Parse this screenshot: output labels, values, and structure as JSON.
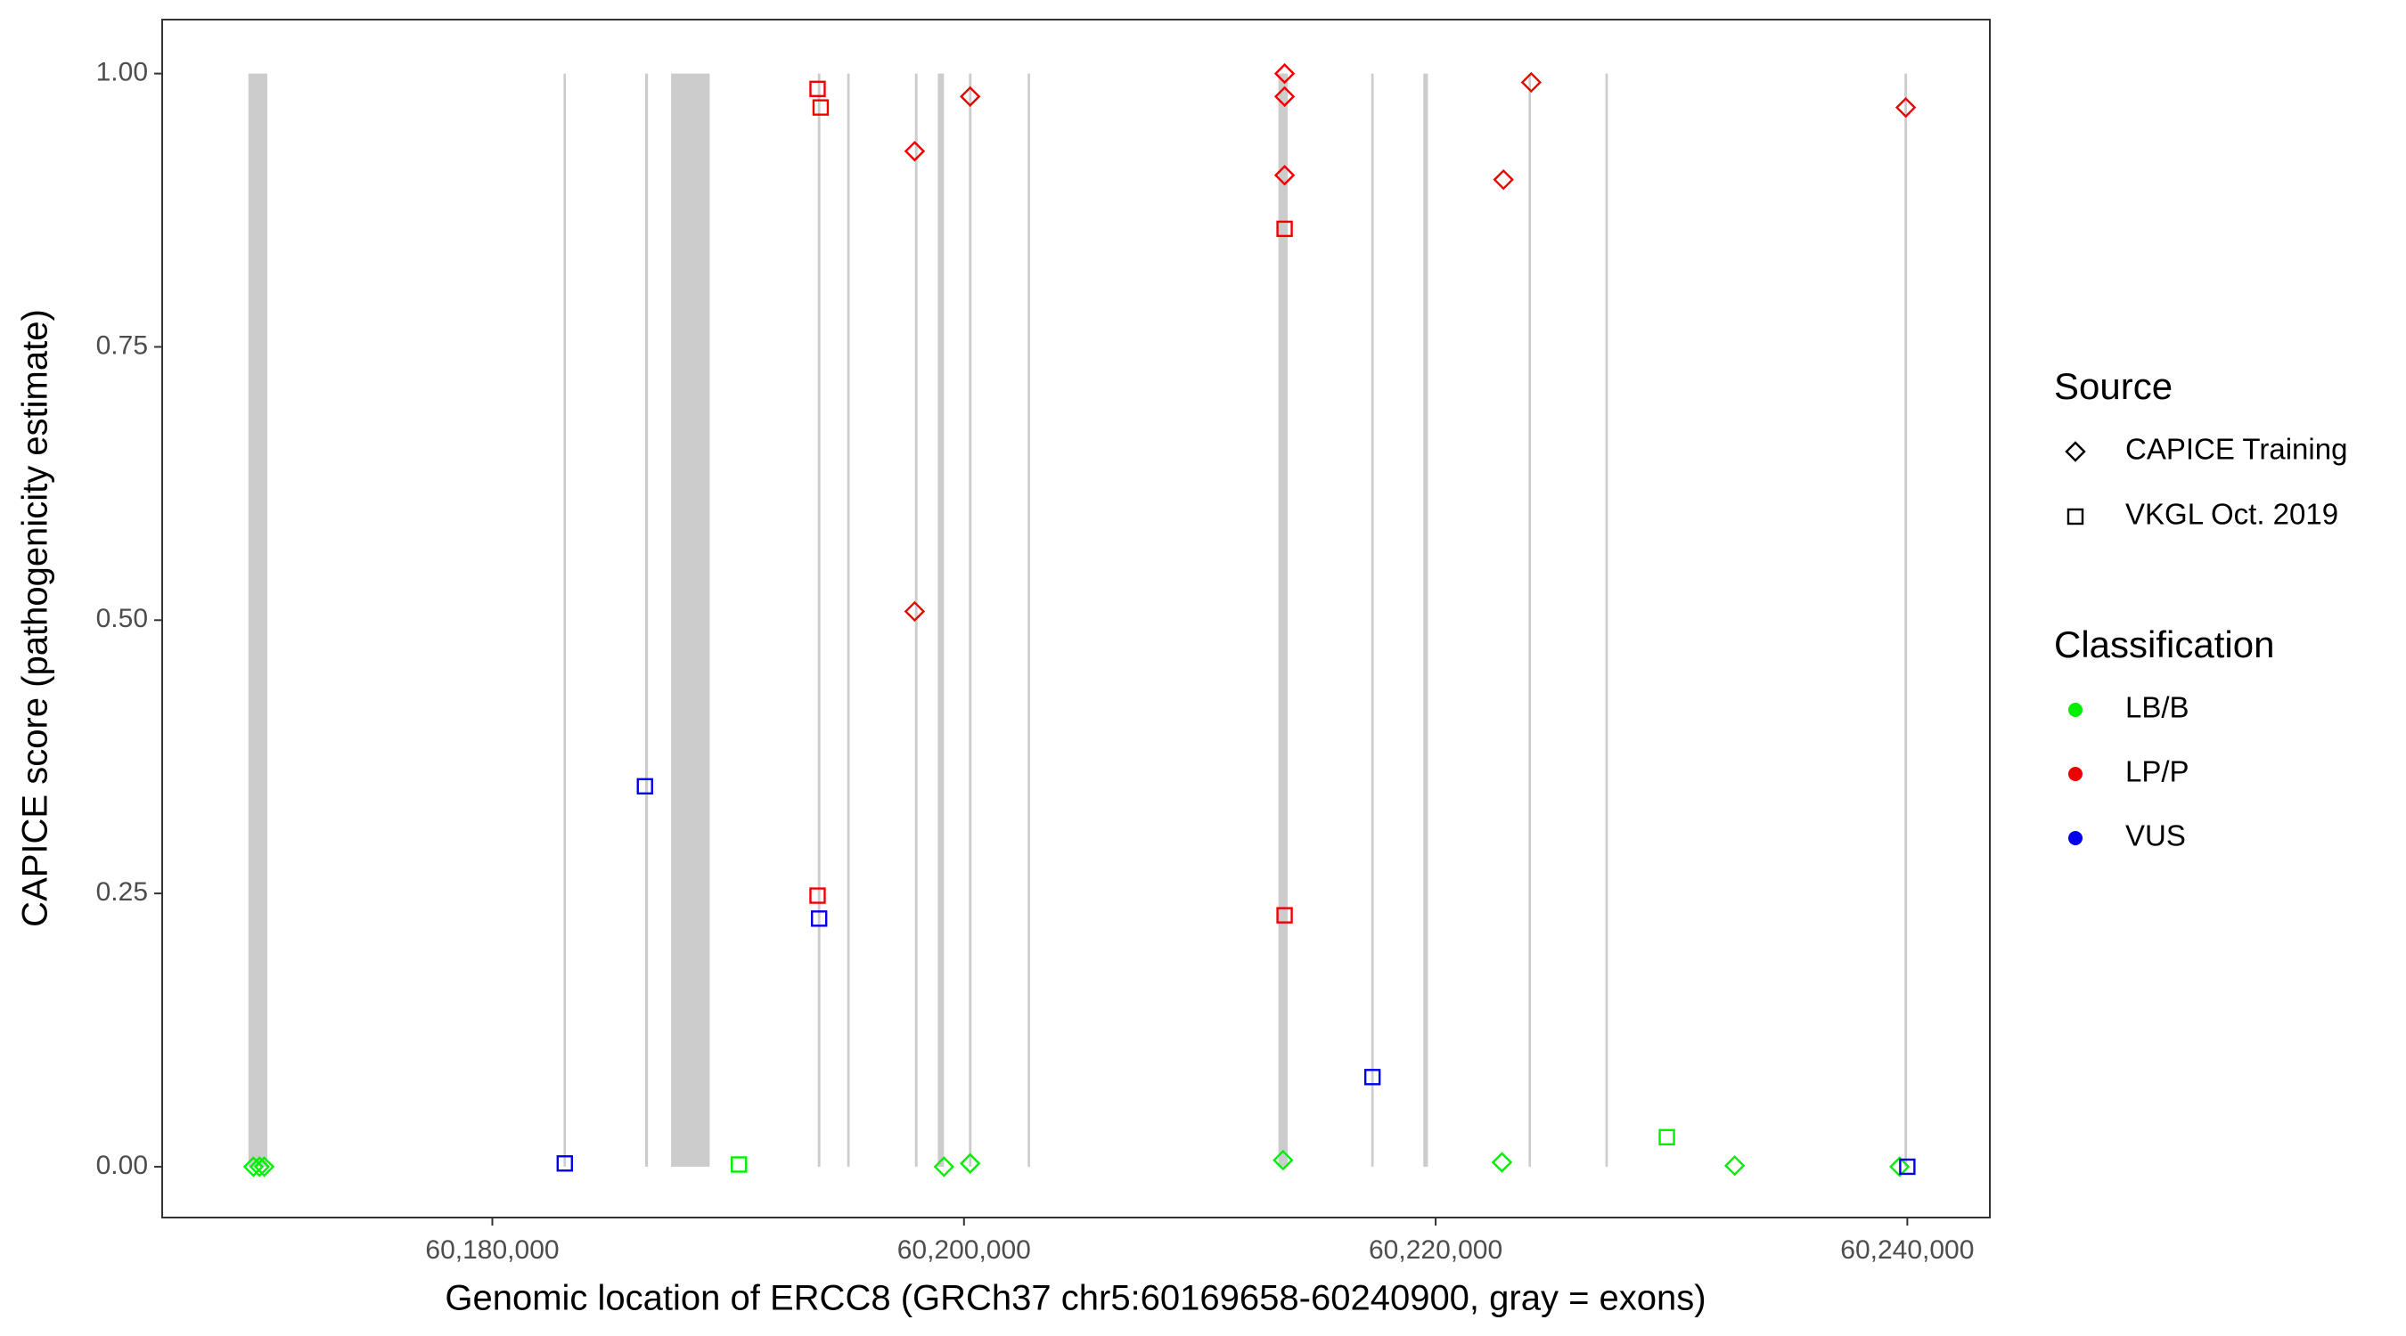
{
  "chart_data": {
    "type": "scatter",
    "x_label": "Genomic location of ERCC8 (GRCh37 chr5:60169658-60240900, gray = exons)",
    "y_label": "CAPICE score (pathogenicity estimate)",
    "xlim": [
      60166000,
      60243500
    ],
    "ylim": [
      -0.0465,
      1.0494
    ],
    "xticks": [
      {
        "value": 60180000,
        "label": "60,180,000"
      },
      {
        "value": 60200000,
        "label": "60,200,000"
      },
      {
        "value": 60220000,
        "label": "60,220,000"
      },
      {
        "value": 60240000,
        "label": "60,240,000"
      }
    ],
    "yticks": [
      {
        "value": 0,
        "label": "0.00"
      },
      {
        "value": 0.25,
        "label": "0.25"
      },
      {
        "value": 0.5,
        "label": "0.50"
      },
      {
        "value": 0.75,
        "label": "0.75"
      },
      {
        "value": 1,
        "label": "1.00"
      }
    ],
    "exon_color": "#cccccc",
    "exons": [
      [
        60169658,
        60170458
      ],
      [
        60183020,
        60183120
      ],
      [
        60186480,
        60186600
      ],
      [
        60187580,
        60189216
      ],
      [
        60193800,
        60193910
      ],
      [
        60195050,
        60195150
      ],
      [
        60197920,
        60198030
      ],
      [
        60198889,
        60199150
      ],
      [
        60200210,
        60200320
      ],
      [
        60202700,
        60202800
      ],
      [
        60213333,
        60213725
      ],
      [
        60217270,
        60217370
      ],
      [
        60219477,
        60219673
      ],
      [
        60223940,
        60224040
      ],
      [
        60227200,
        60227300
      ],
      [
        60239880,
        60239990
      ]
    ],
    "legend": {
      "shape": {
        "title": "Source",
        "items": [
          {
            "label": "CAPICE Training",
            "shape": "diamond"
          },
          {
            "label": "VKGL Oct. 2019",
            "shape": "square"
          }
        ]
      },
      "color": {
        "title": "Classification",
        "items": [
          {
            "label": "LB/B",
            "color": "#00ee00"
          },
          {
            "label": "LP/P",
            "color": "#ee0000"
          },
          {
            "label": "VUS",
            "color": "#0000ee"
          }
        ]
      }
    },
    "series": [
      {
        "source": "CAPICE Training",
        "classification": "LB/B",
        "x": [
          60169869,
          60170131,
          60170327,
          60199150,
          60200261,
          60213529,
          60222810,
          60232680,
          60239673
        ],
        "y": [
          0,
          0,
          0,
          0,
          0.003,
          0.006,
          0.004,
          0.001,
          0
        ]
      },
      {
        "source": "VKGL Oct. 2019",
        "classification": "LB/B",
        "x": [
          60190458,
          60229804
        ],
        "y": [
          0.002,
          0.027
        ]
      },
      {
        "source": "CAPICE Training",
        "classification": "LP/P",
        "x": [
          60197908,
          60197908,
          60200261,
          60213595,
          60213595,
          60213595,
          60222876,
          60224052,
          60239935
        ],
        "y": [
          0.929,
          0.508,
          0.979,
          1.0,
          0.979,
          0.907,
          0.903,
          0.992,
          0.969
        ]
      },
      {
        "source": "VKGL Oct. 2019",
        "classification": "LP/P",
        "x": [
          60193791,
          60193922,
          60193791,
          60213595,
          60213595
        ],
        "y": [
          0.986,
          0.969,
          0.248,
          0.858,
          0.23
        ]
      },
      {
        "source": "VKGL Oct. 2019",
        "classification": "VUS",
        "x": [
          60183072,
          60186471,
          60193856,
          60217320,
          60240000
        ],
        "y": [
          0.003,
          0.348,
          0.227,
          0.082,
          0
        ]
      }
    ]
  }
}
